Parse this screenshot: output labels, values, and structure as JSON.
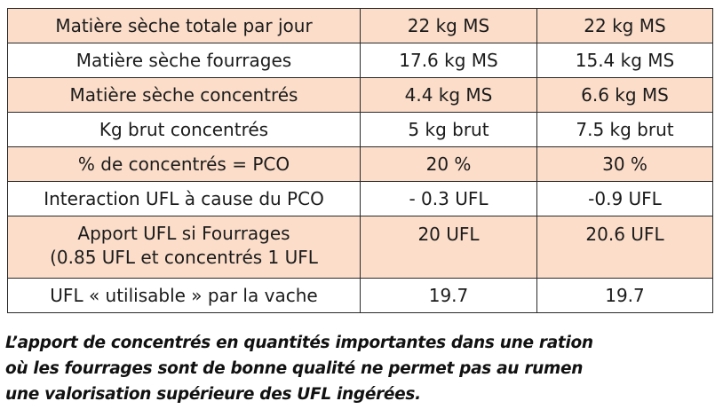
{
  "table": {
    "rows": [
      {
        "label": "Matière sèche totale par jour",
        "col1": "22 kg MS",
        "col2": "22 kg MS"
      },
      {
        "label": "Matière sèche fourrages",
        "col1": "17.6 kg MS",
        "col2": "15.4 kg MS"
      },
      {
        "label": "Matière sèche concentrés",
        "col1": "4.4 kg MS",
        "col2": "6.6 kg MS"
      },
      {
        "label": "Kg brut concentrés",
        "col1": "5 kg brut",
        "col2": "7.5 kg brut"
      },
      {
        "label": "% de concentrés = PCO",
        "col1": "20 %",
        "col2": "30 %"
      },
      {
        "label": "Interaction UFL à cause du PCO",
        "col1": "- 0.3 UFL",
        "col2": "-0.9 UFL"
      },
      {
        "label_line1": "Apport UFL si Fourrages",
        "label_line2": "(0.85 UFL et concentrés 1 UFL",
        "col1": "20 UFL",
        "col2": "20.6 UFL"
      },
      {
        "label": "UFL « utilisable » par la vache",
        "col1": "19.7",
        "col2": "19.7"
      }
    ],
    "colors": {
      "peach_row": "#fbddc9",
      "white_row": "#ffffff",
      "border": "#2a2a2a"
    }
  },
  "caption": {
    "line1": "L’apport de concentrés en quantités importantes dans une ration",
    "line2": "où les fourrages sont de bonne qualité ne permet pas au rumen",
    "line3": "une valorisation supérieure des UFL ingérées."
  }
}
